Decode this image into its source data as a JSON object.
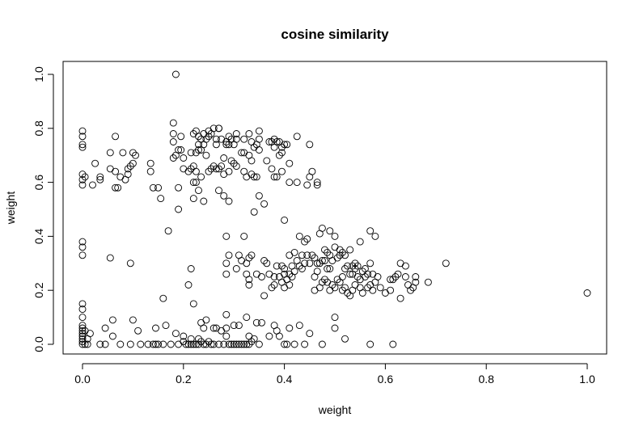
{
  "chart_data": {
    "type": "scatter",
    "title": "cosine similarity",
    "xlabel": "weight",
    "ylabel": "weight",
    "xlim": [
      0,
      1
    ],
    "ylim": [
      0,
      1
    ],
    "xticks": [
      "0.0",
      "0.2",
      "0.4",
      "0.6",
      "0.8",
      "1.0"
    ],
    "yticks": [
      "0.0",
      "0.2",
      "0.4",
      "0.6",
      "0.8",
      "1.0"
    ],
    "grid": false,
    "marker": "open-circle",
    "points": [
      [
        0.0,
        0.79
      ],
      [
        0.0,
        0.77
      ],
      [
        0.0,
        0.74
      ],
      [
        0.0,
        0.73
      ],
      [
        0.0,
        0.63
      ],
      [
        0.0,
        0.61
      ],
      [
        0.0,
        0.59
      ],
      [
        0.0,
        0.38
      ],
      [
        0.0,
        0.36
      ],
      [
        0.0,
        0.33
      ],
      [
        0.0,
        0.15
      ],
      [
        0.0,
        0.13
      ],
      [
        0.0,
        0.1
      ],
      [
        0.0,
        0.07
      ],
      [
        0.0,
        0.06
      ],
      [
        0.0,
        0.05
      ],
      [
        0.0,
        0.04
      ],
      [
        0.0,
        0.03
      ],
      [
        0.0,
        0.02
      ],
      [
        0.0,
        0.01
      ],
      [
        0.0,
        0.0
      ],
      [
        0.005,
        0.62
      ],
      [
        0.005,
        0.05
      ],
      [
        0.005,
        0.0
      ],
      [
        0.01,
        0.02
      ],
      [
        0.01,
        0.0
      ],
      [
        0.015,
        0.04
      ],
      [
        0.02,
        0.59
      ],
      [
        0.025,
        0.67
      ],
      [
        0.035,
        0.61
      ],
      [
        0.035,
        0.62
      ],
      [
        0.035,
        0.0
      ],
      [
        0.045,
        0.06
      ],
      [
        0.045,
        0.0
      ],
      [
        0.055,
        0.71
      ],
      [
        0.055,
        0.65
      ],
      [
        0.055,
        0.32
      ],
      [
        0.06,
        0.09
      ],
      [
        0.06,
        0.03
      ],
      [
        0.065,
        0.77
      ],
      [
        0.065,
        0.64
      ],
      [
        0.065,
        0.58
      ],
      [
        0.07,
        0.58
      ],
      [
        0.075,
        0.62
      ],
      [
        0.075,
        0.0
      ],
      [
        0.08,
        0.71
      ],
      [
        0.085,
        0.61
      ],
      [
        0.09,
        0.65
      ],
      [
        0.09,
        0.63
      ],
      [
        0.095,
        0.66
      ],
      [
        0.095,
        0.3
      ],
      [
        0.095,
        0.0
      ],
      [
        0.1,
        0.71
      ],
      [
        0.1,
        0.67
      ],
      [
        0.1,
        0.09
      ],
      [
        0.105,
        0.7
      ],
      [
        0.11,
        0.05
      ],
      [
        0.115,
        0.0
      ],
      [
        0.13,
        0.0
      ],
      [
        0.135,
        0.67
      ],
      [
        0.135,
        0.64
      ],
      [
        0.14,
        0.58
      ],
      [
        0.14,
        0.0
      ],
      [
        0.145,
        0.06
      ],
      [
        0.145,
        0.0
      ],
      [
        0.15,
        0.58
      ],
      [
        0.15,
        0.0
      ],
      [
        0.155,
        0.54
      ],
      [
        0.16,
        0.17
      ],
      [
        0.16,
        0.0
      ],
      [
        0.165,
        0.07
      ],
      [
        0.17,
        0.42
      ],
      [
        0.175,
        0.0
      ],
      [
        0.18,
        0.82
      ],
      [
        0.18,
        0.78
      ],
      [
        0.18,
        0.75
      ],
      [
        0.18,
        0.69
      ],
      [
        0.185,
        1.0
      ],
      [
        0.185,
        0.7
      ],
      [
        0.185,
        0.04
      ],
      [
        0.19,
        0.72
      ],
      [
        0.19,
        0.58
      ],
      [
        0.19,
        0.5
      ],
      [
        0.19,
        0.0
      ],
      [
        0.195,
        0.77
      ],
      [
        0.195,
        0.72
      ],
      [
        0.2,
        0.69
      ],
      [
        0.2,
        0.65
      ],
      [
        0.2,
        0.03
      ],
      [
        0.2,
        0.01
      ],
      [
        0.205,
        0.0
      ],
      [
        0.21,
        0.64
      ],
      [
        0.21,
        0.22
      ],
      [
        0.21,
        0.0
      ],
      [
        0.215,
        0.71
      ],
      [
        0.215,
        0.65
      ],
      [
        0.215,
        0.28
      ],
      [
        0.215,
        0.02
      ],
      [
        0.215,
        0.0
      ],
      [
        0.22,
        0.78
      ],
      [
        0.22,
        0.66
      ],
      [
        0.22,
        0.6
      ],
      [
        0.22,
        0.54
      ],
      [
        0.22,
        0.15
      ],
      [
        0.22,
        0.0
      ],
      [
        0.225,
        0.79
      ],
      [
        0.225,
        0.71
      ],
      [
        0.225,
        0.64
      ],
      [
        0.225,
        0.6
      ],
      [
        0.225,
        0.0
      ],
      [
        0.23,
        0.77
      ],
      [
        0.23,
        0.74
      ],
      [
        0.23,
        0.72
      ],
      [
        0.23,
        0.57
      ],
      [
        0.23,
        0.02
      ],
      [
        0.23,
        0.0
      ],
      [
        0.235,
        0.76
      ],
      [
        0.235,
        0.72
      ],
      [
        0.235,
        0.62
      ],
      [
        0.235,
        0.08
      ],
      [
        0.235,
        0.01
      ],
      [
        0.24,
        0.78
      ],
      [
        0.24,
        0.74
      ],
      [
        0.24,
        0.53
      ],
      [
        0.24,
        0.06
      ],
      [
        0.24,
        0.0
      ],
      [
        0.245,
        0.76
      ],
      [
        0.245,
        0.7
      ],
      [
        0.245,
        0.09
      ],
      [
        0.245,
        0.0
      ],
      [
        0.25,
        0.79
      ],
      [
        0.25,
        0.77
      ],
      [
        0.25,
        0.64
      ],
      [
        0.25,
        0.01
      ],
      [
        0.255,
        0.78
      ],
      [
        0.255,
        0.65
      ],
      [
        0.255,
        0.0
      ],
      [
        0.26,
        0.8
      ],
      [
        0.26,
        0.66
      ],
      [
        0.26,
        0.06
      ],
      [
        0.26,
        0.0
      ],
      [
        0.265,
        0.76
      ],
      [
        0.265,
        0.74
      ],
      [
        0.265,
        0.65
      ],
      [
        0.265,
        0.06
      ],
      [
        0.27,
        0.8
      ],
      [
        0.27,
        0.8
      ],
      [
        0.27,
        0.65
      ],
      [
        0.27,
        0.57
      ],
      [
        0.27,
        0.0
      ],
      [
        0.275,
        0.76
      ],
      [
        0.275,
        0.66
      ],
      [
        0.275,
        0.05
      ],
      [
        0.28,
        0.69
      ],
      [
        0.28,
        0.63
      ],
      [
        0.28,
        0.55
      ],
      [
        0.28,
        0.0
      ],
      [
        0.285,
        0.75
      ],
      [
        0.285,
        0.74
      ],
      [
        0.285,
        0.4
      ],
      [
        0.285,
        0.3
      ],
      [
        0.285,
        0.26
      ],
      [
        0.285,
        0.11
      ],
      [
        0.285,
        0.06
      ],
      [
        0.285,
        0.03
      ],
      [
        0.29,
        0.77
      ],
      [
        0.29,
        0.74
      ],
      [
        0.29,
        0.64
      ],
      [
        0.29,
        0.53
      ],
      [
        0.29,
        0.33
      ],
      [
        0.29,
        0.0
      ],
      [
        0.295,
        0.76
      ],
      [
        0.295,
        0.68
      ],
      [
        0.295,
        0.0
      ],
      [
        0.3,
        0.74
      ],
      [
        0.3,
        0.67
      ],
      [
        0.3,
        0.07
      ],
      [
        0.3,
        0.0
      ],
      [
        0.305,
        0.78
      ],
      [
        0.305,
        0.76
      ],
      [
        0.305,
        0.66
      ],
      [
        0.305,
        0.28
      ],
      [
        0.305,
        0.0
      ],
      [
        0.31,
        0.33
      ],
      [
        0.31,
        0.07
      ],
      [
        0.31,
        0.0
      ],
      [
        0.315,
        0.71
      ],
      [
        0.315,
        0.31
      ],
      [
        0.315,
        0.0
      ],
      [
        0.32,
        0.76
      ],
      [
        0.32,
        0.71
      ],
      [
        0.32,
        0.64
      ],
      [
        0.32,
        0.4
      ],
      [
        0.32,
        0.0
      ],
      [
        0.325,
        0.62
      ],
      [
        0.325,
        0.3
      ],
      [
        0.325,
        0.26
      ],
      [
        0.325,
        0.1
      ],
      [
        0.325,
        0.0
      ],
      [
        0.33,
        0.78
      ],
      [
        0.33,
        0.7
      ],
      [
        0.33,
        0.32
      ],
      [
        0.33,
        0.24
      ],
      [
        0.33,
        0.22
      ],
      [
        0.33,
        0.03
      ],
      [
        0.33,
        0.0
      ],
      [
        0.335,
        0.75
      ],
      [
        0.335,
        0.68
      ],
      [
        0.335,
        0.63
      ],
      [
        0.335,
        0.33
      ],
      [
        0.335,
        0.01
      ],
      [
        0.34,
        0.73
      ],
      [
        0.34,
        0.62
      ],
      [
        0.34,
        0.49
      ],
      [
        0.34,
        0.02
      ],
      [
        0.345,
        0.74
      ],
      [
        0.345,
        0.62
      ],
      [
        0.345,
        0.26
      ],
      [
        0.345,
        0.08
      ],
      [
        0.35,
        0.79
      ],
      [
        0.35,
        0.76
      ],
      [
        0.35,
        0.72
      ],
      [
        0.35,
        0.55
      ],
      [
        0.35,
        0.0
      ],
      [
        0.355,
        0.25
      ],
      [
        0.355,
        0.08
      ],
      [
        0.36,
        0.31
      ],
      [
        0.36,
        0.18
      ],
      [
        0.36,
        0.52
      ],
      [
        0.365,
        0.68
      ],
      [
        0.365,
        0.3
      ],
      [
        0.37,
        0.75
      ],
      [
        0.37,
        0.26
      ],
      [
        0.37,
        0.03
      ],
      [
        0.375,
        0.75
      ],
      [
        0.375,
        0.65
      ],
      [
        0.375,
        0.21
      ],
      [
        0.38,
        0.76
      ],
      [
        0.38,
        0.73
      ],
      [
        0.38,
        0.62
      ],
      [
        0.38,
        0.25
      ],
      [
        0.38,
        0.22
      ],
      [
        0.38,
        0.07
      ],
      [
        0.385,
        0.75
      ],
      [
        0.385,
        0.62
      ],
      [
        0.385,
        0.29
      ],
      [
        0.385,
        0.05
      ],
      [
        0.39,
        0.75
      ],
      [
        0.39,
        0.7
      ],
      [
        0.39,
        0.25
      ],
      [
        0.39,
        0.03
      ],
      [
        0.395,
        0.73
      ],
      [
        0.395,
        0.71
      ],
      [
        0.395,
        0.64
      ],
      [
        0.395,
        0.29
      ],
      [
        0.395,
        0.23
      ],
      [
        0.4,
        0.74
      ],
      [
        0.4,
        0.46
      ],
      [
        0.4,
        0.28
      ],
      [
        0.4,
        0.26
      ],
      [
        0.4,
        0.21
      ],
      [
        0.4,
        0.0
      ],
      [
        0.405,
        0.74
      ],
      [
        0.405,
        0.24
      ],
      [
        0.405,
        0.0
      ],
      [
        0.41,
        0.67
      ],
      [
        0.41,
        0.6
      ],
      [
        0.41,
        0.33
      ],
      [
        0.41,
        0.26
      ],
      [
        0.41,
        0.22
      ],
      [
        0.41,
        0.06
      ],
      [
        0.415,
        0.29
      ],
      [
        0.415,
        0.25
      ],
      [
        0.42,
        0.34
      ],
      [
        0.42,
        0.27
      ],
      [
        0.42,
        0.0
      ],
      [
        0.425,
        0.77
      ],
      [
        0.425,
        0.6
      ],
      [
        0.425,
        0.31
      ],
      [
        0.43,
        0.4
      ],
      [
        0.43,
        0.29
      ],
      [
        0.43,
        0.07
      ],
      [
        0.435,
        0.33
      ],
      [
        0.435,
        0.28
      ],
      [
        0.44,
        0.38
      ],
      [
        0.44,
        0.3
      ],
      [
        0.44,
        0.0
      ],
      [
        0.445,
        0.59
      ],
      [
        0.445,
        0.39
      ],
      [
        0.445,
        0.33
      ],
      [
        0.45,
        0.74
      ],
      [
        0.45,
        0.62
      ],
      [
        0.45,
        0.3
      ],
      [
        0.45,
        0.04
      ],
      [
        0.455,
        0.64
      ],
      [
        0.455,
        0.33
      ],
      [
        0.46,
        0.32
      ],
      [
        0.46,
        0.25
      ],
      [
        0.46,
        0.2
      ],
      [
        0.465,
        0.6
      ],
      [
        0.465,
        0.59
      ],
      [
        0.465,
        0.3
      ],
      [
        0.465,
        0.27
      ],
      [
        0.47,
        0.41
      ],
      [
        0.47,
        0.3
      ],
      [
        0.47,
        0.21
      ],
      [
        0.475,
        0.43
      ],
      [
        0.475,
        0.31
      ],
      [
        0.475,
        0.23
      ],
      [
        0.475,
        0.0
      ],
      [
        0.48,
        0.35
      ],
      [
        0.48,
        0.31
      ],
      [
        0.48,
        0.24
      ],
      [
        0.485,
        0.34
      ],
      [
        0.485,
        0.28
      ],
      [
        0.485,
        0.23
      ],
      [
        0.49,
        0.42
      ],
      [
        0.49,
        0.33
      ],
      [
        0.49,
        0.28
      ],
      [
        0.49,
        0.2
      ],
      [
        0.495,
        0.31
      ],
      [
        0.495,
        0.22
      ],
      [
        0.5,
        0.4
      ],
      [
        0.5,
        0.36
      ],
      [
        0.5,
        0.21
      ],
      [
        0.5,
        0.1
      ],
      [
        0.5,
        0.06
      ],
      [
        0.505,
        0.32
      ],
      [
        0.505,
        0.24
      ],
      [
        0.51,
        0.35
      ],
      [
        0.51,
        0.33
      ],
      [
        0.51,
        0.23
      ],
      [
        0.515,
        0.34
      ],
      [
        0.515,
        0.25
      ],
      [
        0.515,
        0.2
      ],
      [
        0.52,
        0.33
      ],
      [
        0.52,
        0.28
      ],
      [
        0.52,
        0.21
      ],
      [
        0.52,
        0.02
      ],
      [
        0.525,
        0.29
      ],
      [
        0.525,
        0.19
      ],
      [
        0.53,
        0.35
      ],
      [
        0.53,
        0.26
      ],
      [
        0.53,
        0.18
      ],
      [
        0.535,
        0.29
      ],
      [
        0.535,
        0.26
      ],
      [
        0.535,
        0.2
      ],
      [
        0.54,
        0.3
      ],
      [
        0.54,
        0.28
      ],
      [
        0.54,
        0.22
      ],
      [
        0.545,
        0.29
      ],
      [
        0.545,
        0.25
      ],
      [
        0.55,
        0.38
      ],
      [
        0.55,
        0.24
      ],
      [
        0.55,
        0.21
      ],
      [
        0.555,
        0.27
      ],
      [
        0.555,
        0.19
      ],
      [
        0.56,
        0.28
      ],
      [
        0.56,
        0.25
      ],
      [
        0.565,
        0.26
      ],
      [
        0.565,
        0.21
      ],
      [
        0.57,
        0.42
      ],
      [
        0.57,
        0.3
      ],
      [
        0.57,
        0.22
      ],
      [
        0.57,
        0.0
      ],
      [
        0.575,
        0.26
      ],
      [
        0.575,
        0.2
      ],
      [
        0.58,
        0.4
      ],
      [
        0.58,
        0.23
      ],
      [
        0.585,
        0.25
      ],
      [
        0.59,
        0.21
      ],
      [
        0.6,
        0.19
      ],
      [
        0.61,
        0.2
      ],
      [
        0.61,
        0.24
      ],
      [
        0.615,
        0.24
      ],
      [
        0.615,
        0.0
      ],
      [
        0.62,
        0.25
      ],
      [
        0.625,
        0.26
      ],
      [
        0.63,
        0.3
      ],
      [
        0.63,
        0.17
      ],
      [
        0.64,
        0.29
      ],
      [
        0.64,
        0.25
      ],
      [
        0.645,
        0.22
      ],
      [
        0.65,
        0.2
      ],
      [
        0.655,
        0.21
      ],
      [
        0.66,
        0.23
      ],
      [
        0.66,
        0.25
      ],
      [
        0.685,
        0.23
      ],
      [
        0.72,
        0.3
      ],
      [
        1.0,
        0.19
      ]
    ]
  }
}
